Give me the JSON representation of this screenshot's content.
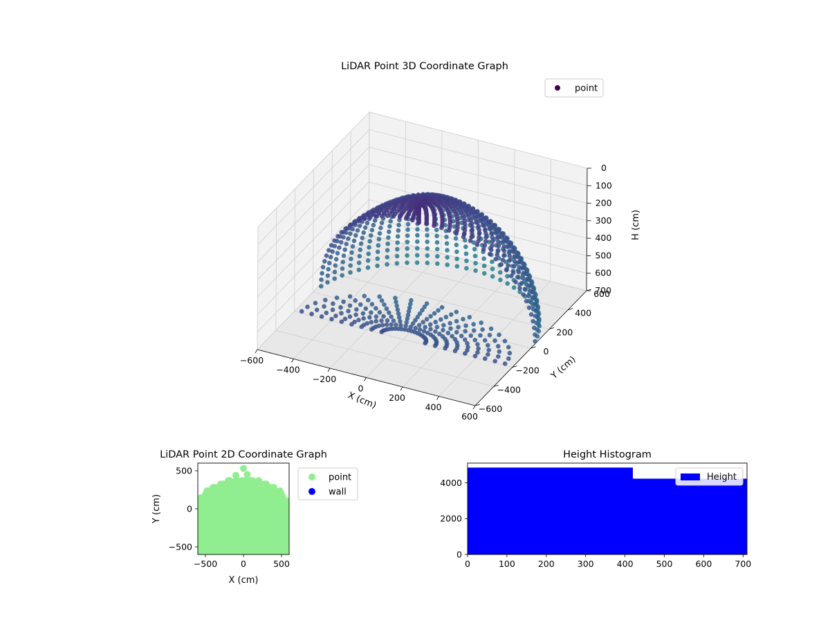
{
  "chart_data": [
    {
      "type": "scatter",
      "projection": "3d",
      "title": "LiDAR Point 3D Coordinate Graph",
      "xlabel": "X (cm)",
      "ylabel": "Y (cm)",
      "zlabel": "H (cm)",
      "xlim": [
        -600,
        600
      ],
      "ylim": [
        -600,
        600
      ],
      "zlim": [
        0,
        700
      ],
      "z_inverted": true,
      "x_ticks": [
        "−600",
        "−400",
        "−200",
        "0",
        "200",
        "400",
        "600"
      ],
      "y_ticks": [
        "−600",
        "−400",
        "−200",
        "0",
        "200",
        "400",
        "600"
      ],
      "z_ticks": [
        "0",
        "100",
        "200",
        "300",
        "400",
        "500",
        "600",
        "700"
      ],
      "grid": true,
      "legend": {
        "placement": "upper-right",
        "entries": [
          {
            "label": "point",
            "color": "#440154"
          }
        ]
      },
      "colormap": "viridis",
      "series": [
        {
          "name": "point",
          "shape": "hemispherical dome of radius ~600 cm (upper half y > -600), height 0–700 cm, color mapped by distance",
          "radius": 600,
          "height_range": [
            0,
            700
          ]
        }
      ]
    },
    {
      "type": "scatter",
      "title": "LiDAR Point 2D Coordinate Graph",
      "xlabel": "X (cm)",
      "ylabel": "Y (cm)",
      "xlim": [
        -600,
        600
      ],
      "ylim": [
        -600,
        600
      ],
      "x_ticks": [
        "−500",
        "0",
        "500"
      ],
      "y_ticks": [
        "−500",
        "0",
        "500"
      ],
      "legend": {
        "placement": "outside-right",
        "entries": [
          {
            "label": "point",
            "color": "#90ee90"
          },
          {
            "label": "wall",
            "color": "#0000ff"
          }
        ]
      },
      "series": [
        {
          "name": "point",
          "color": "#90ee90",
          "shape": "filled half-disc, radius ~600 cm, top at y ~ 400–530"
        },
        {
          "name": "wall",
          "color": "#0000ff",
          "points": []
        }
      ]
    },
    {
      "type": "bar",
      "subtype": "histogram",
      "title": "Height Histogram",
      "xlim": [
        0,
        710
      ],
      "ylim": [
        0,
        5100
      ],
      "x_ticks": [
        "0",
        "100",
        "200",
        "300",
        "400",
        "500",
        "600",
        "700"
      ],
      "y_ticks": [
        "0",
        "2000",
        "4000"
      ],
      "legend": {
        "placement": "upper-right",
        "entries": [
          {
            "label": "Height",
            "color": "#0000ff"
          }
        ]
      },
      "bins": [
        {
          "start": 0,
          "end": 420,
          "count": 4850
        },
        {
          "start": 420,
          "end": 710,
          "count": 4230
        }
      ],
      "color": "#0000ff"
    }
  ]
}
